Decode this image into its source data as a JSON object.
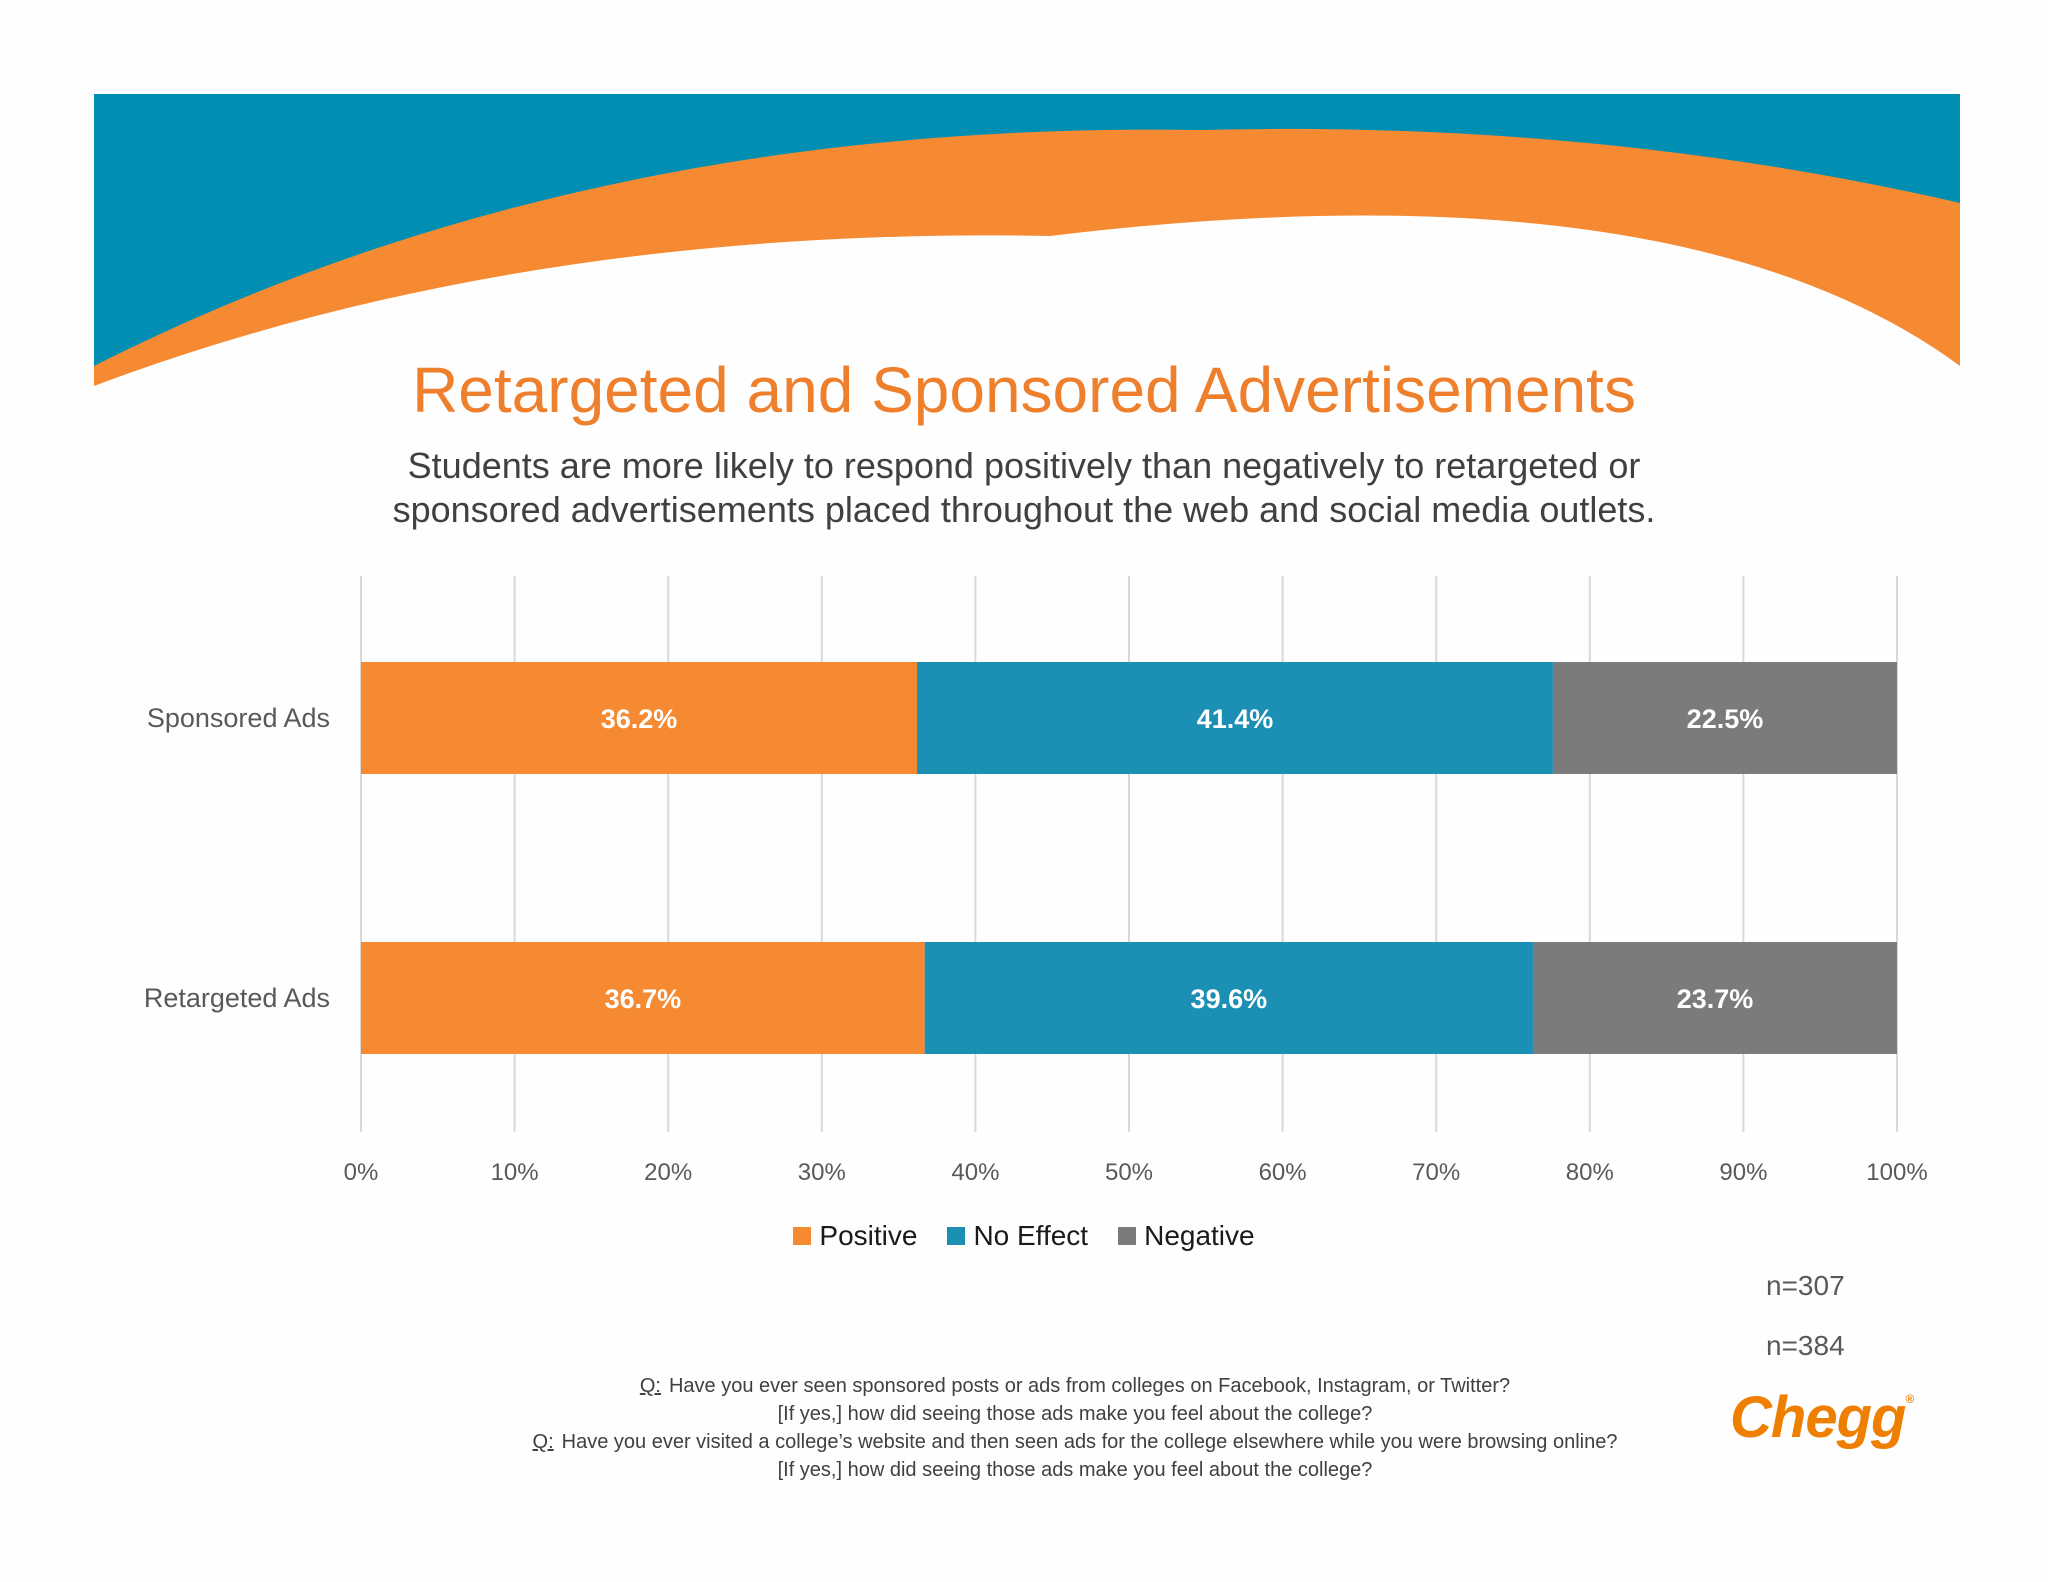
{
  "colors": {
    "banner_blue": "#008fb2",
    "banner_orange": "#f58a33",
    "title": "#ee7f2d",
    "positive": "#f58a33",
    "no_effect": "#1c8fb5",
    "negative": "#7b7b7b",
    "gridline": "#d9d9d9",
    "logo": "#ee7f00"
  },
  "header": {
    "title": "Retargeted and Sponsored Advertisements",
    "subtitle_line1": "Students are more likely to respond positively than negatively to retargeted or",
    "subtitle_line2": "sponsored advertisements placed throughout the web and social media outlets."
  },
  "chart_data": {
    "type": "bar",
    "orientation": "horizontal",
    "stacked": true,
    "categories": [
      "Sponsored Ads",
      "Retargeted Ads"
    ],
    "series": [
      {
        "name": "Positive",
        "values": [
          36.2,
          36.7
        ],
        "labels": [
          "36.2%",
          "36.7%"
        ]
      },
      {
        "name": "No Effect",
        "values": [
          41.4,
          39.6
        ],
        "labels": [
          "41.4%",
          "39.6%"
        ]
      },
      {
        "name": "Negative",
        "values": [
          22.5,
          23.7
        ],
        "labels": [
          "22.5%",
          "23.7%"
        ]
      }
    ],
    "xlim": [
      0,
      100
    ],
    "x_ticks": [
      "0%",
      "10%",
      "20%",
      "30%",
      "40%",
      "50%",
      "60%",
      "70%",
      "80%",
      "90%",
      "100%"
    ],
    "grid": true,
    "legend_position": "bottom"
  },
  "sample_sizes": [
    "n=307",
    "n=384"
  ],
  "footnote": {
    "q_marker": "Q:",
    "q1_line1": "Have you ever seen sponsored posts or ads from colleges on Facebook, Instagram, or Twitter?",
    "q1_line2": "[If yes,] how did seeing those ads make you feel about the college?",
    "q2_line1": "Have you ever visited a college’s website and then seen ads for the college elsewhere while you were browsing online?",
    "q2_line2": "[If yes,] how did seeing those ads make you feel about the college?"
  },
  "logo": {
    "text": "Chegg",
    "mark": "®"
  }
}
